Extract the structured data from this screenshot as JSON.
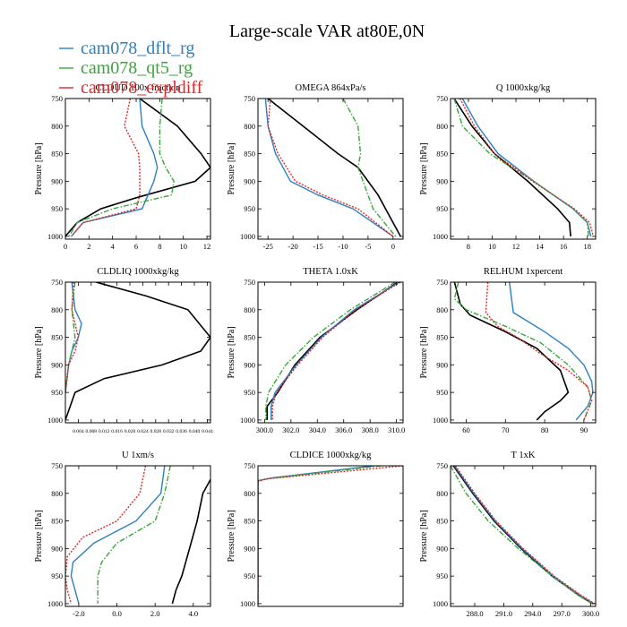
{
  "title": "Large-scale VAR at80E,0N",
  "legend": [
    {
      "name": "cam078_dflt_rg",
      "color": "#2e7fc0",
      "dash": "solid"
    },
    {
      "name": "cam078_qt5_rg",
      "color": "#3aa53a",
      "dash": "dashdot"
    },
    {
      "name": "cam078_expldiff",
      "color": "#e0282a",
      "dash": "dotted"
    }
  ],
  "obs_color": "#000000",
  "ylabel": "Pressure [hPa]",
  "ylim": [
    1005,
    750
  ],
  "yticks": [
    750,
    800,
    850,
    900,
    950,
    1000
  ],
  "chart_data": [
    {
      "type": "line",
      "title": "CLOUD 100x fraction",
      "xlim": [
        0,
        12.3
      ],
      "xticks": [
        0,
        2,
        4,
        6,
        8,
        10,
        12
      ],
      "xticklabels": [
        "0",
        "2",
        "4",
        "6",
        "8",
        "10",
        "12"
      ],
      "series": [
        {
          "name": "obs",
          "x": [
            6.3,
            9.5,
            11.5,
            12.3,
            11,
            6,
            3,
            1,
            0
          ],
          "y": [
            750,
            800,
            850,
            875,
            900,
            930,
            950,
            975,
            1000
          ]
        },
        {
          "name": "cam078_dflt_rg",
          "x": [
            6.3,
            6.5,
            7.5,
            7.8,
            7.5,
            7,
            6.5,
            1.5,
            0.5
          ],
          "y": [
            750,
            800,
            850,
            875,
            900,
            925,
            950,
            975,
            1000
          ]
        },
        {
          "name": "cam078_qt5_rg",
          "x": [
            8.2,
            8,
            8,
            8.5,
            9.2,
            9,
            4,
            1,
            0.3
          ],
          "y": [
            750,
            800,
            850,
            875,
            900,
            925,
            950,
            975,
            1000
          ]
        },
        {
          "name": "cam078_expldiff",
          "x": [
            5.5,
            5,
            6.2,
            6.3,
            6.3,
            6.3,
            6,
            1.5,
            0.5
          ],
          "y": [
            750,
            800,
            850,
            875,
            900,
            925,
            950,
            975,
            1000
          ]
        }
      ]
    },
    {
      "type": "line",
      "title": "OMEGA  864xPa/s",
      "xlim": [
        -27,
        2
      ],
      "xticks": [
        -25,
        -20,
        -15,
        -10,
        -5,
        0
      ],
      "xticklabels": [
        "-25",
        "-20",
        "-15",
        "-10",
        "-5",
        "0"
      ],
      "series": [
        {
          "name": "obs",
          "x": [
            -25,
            -18,
            -11,
            -7,
            -3,
            0,
            1.5
          ],
          "y": [
            750,
            800,
            850,
            875,
            925,
            975,
            1000
          ]
        },
        {
          "name": "cam078_dflt_rg",
          "x": [
            -25.5,
            -25,
            -23.5,
            -20.5,
            -15,
            -8,
            0
          ],
          "y": [
            750,
            800,
            850,
            900,
            925,
            950,
            1000
          ]
        },
        {
          "name": "cam078_qt5_rg",
          "x": [
            -10,
            -7,
            -6.5,
            -7,
            -6,
            -4,
            0.5
          ],
          "y": [
            750,
            800,
            850,
            875,
            900,
            950,
            1000
          ]
        },
        {
          "name": "cam078_expldiff",
          "x": [
            -24.5,
            -25,
            -23,
            -19.5,
            -14,
            -7,
            0
          ],
          "y": [
            750,
            800,
            850,
            900,
            925,
            950,
            1000
          ]
        }
      ]
    },
    {
      "type": "line",
      "title": "Q  1000xkg/kg",
      "xlim": [
        6.5,
        18.7
      ],
      "xticks": [
        8,
        10,
        12,
        14,
        16,
        18
      ],
      "xticklabels": [
        "8",
        "10",
        "12",
        "14",
        "16",
        "18"
      ],
      "series": [
        {
          "name": "obs",
          "x": [
            6.8,
            8.3,
            10.2,
            13,
            15.5,
            16.5,
            16.6
          ],
          "y": [
            750,
            800,
            850,
            900,
            950,
            975,
            1000
          ]
        },
        {
          "name": "cam078_dflt_rg",
          "x": [
            7.5,
            8.8,
            10.5,
            13.5,
            16.8,
            18,
            18.3
          ],
          "y": [
            750,
            800,
            850,
            900,
            950,
            975,
            1000
          ]
        },
        {
          "name": "cam078_qt5_rg",
          "x": [
            6.8,
            7.5,
            9.8,
            13.5,
            16.8,
            18,
            18.1
          ],
          "y": [
            750,
            800,
            850,
            900,
            950,
            975,
            1000
          ]
        },
        {
          "name": "cam078_expldiff",
          "x": [
            7.3,
            8.5,
            10.2,
            13.4,
            16.9,
            18.2,
            18.5
          ],
          "y": [
            750,
            800,
            850,
            900,
            950,
            975,
            1000
          ]
        }
      ]
    },
    {
      "type": "line",
      "title": "CLDLIQ  1000xkg/kg",
      "xlim": [
        0,
        0.045
      ],
      "xticks": [
        0.004,
        0.008,
        0.012,
        0.016,
        0.02,
        0.024,
        0.028,
        0.032,
        0.036,
        0.04,
        0.044
      ],
      "xticklabels": [
        "0.004",
        "0.008",
        "0.012",
        "0.016",
        "0.020",
        "0.024",
        "0.028",
        "0.032",
        "0.036",
        "0.040",
        "0.044"
      ],
      "series": [
        {
          "name": "obs",
          "x": [
            0.0095,
            0.025,
            0.038,
            0.045,
            0.042,
            0.03,
            0.012,
            0.003,
            0
          ],
          "y": [
            750,
            775,
            800,
            850,
            875,
            900,
            925,
            950,
            1000
          ]
        },
        {
          "name": "cam078_dflt_rg",
          "x": [
            0.002,
            0.003,
            0.005,
            0.004,
            0.002,
            0.001,
            0
          ],
          "y": [
            750,
            800,
            825,
            850,
            875,
            900,
            950
          ]
        },
        {
          "name": "cam078_qt5_rg",
          "x": [
            0.003,
            0.002,
            0.003,
            0.002,
            0.001,
            0
          ],
          "y": [
            750,
            800,
            850,
            875,
            900,
            950
          ]
        },
        {
          "name": "cam078_expldiff",
          "x": [
            0.0025,
            0.002,
            0.003,
            0.004,
            0.003,
            0.001,
            0
          ],
          "y": [
            750,
            800,
            825,
            850,
            875,
            900,
            950
          ]
        }
      ]
    },
    {
      "type": "line",
      "title": "THETA  1.0xK",
      "xlim": [
        299.5,
        310.5
      ],
      "xticks": [
        300,
        302,
        304,
        306,
        308,
        310
      ],
      "xticklabels": [
        "300.0",
        "302.0",
        "304.0",
        "306.0",
        "308.0",
        "310.0"
      ],
      "series": [
        {
          "name": "obs",
          "x": [
            310.1,
            307,
            304.2,
            302.3,
            301,
            300.2,
            300.2
          ],
          "y": [
            750,
            800,
            850,
            900,
            950,
            975,
            1000
          ]
        },
        {
          "name": "cam078_dflt_rg",
          "x": [
            310.2,
            306.8,
            304.3,
            302.4,
            300.8,
            300.5,
            300.5
          ],
          "y": [
            750,
            800,
            850,
            900,
            950,
            975,
            1000
          ]
        },
        {
          "name": "cam078_qt5_rg",
          "x": [
            309.9,
            306.5,
            303.7,
            301.6,
            300.3,
            300.1,
            300.1
          ],
          "y": [
            750,
            800,
            850,
            900,
            950,
            975,
            1000
          ]
        },
        {
          "name": "cam078_expldiff",
          "x": [
            310.3,
            306.9,
            304.4,
            302.5,
            300.9,
            300.6,
            300.6
          ],
          "y": [
            750,
            800,
            850,
            900,
            950,
            975,
            1000
          ]
        }
      ]
    },
    {
      "type": "line",
      "title": "RELHUM  1xpercent",
      "xlim": [
        56,
        93
      ],
      "xticks": [
        60,
        70,
        80,
        90
      ],
      "xticklabels": [
        "60",
        "70",
        "80",
        "90"
      ],
      "series": [
        {
          "name": "obs",
          "x": [
            57,
            58.5,
            61,
            70,
            78,
            84,
            86,
            84,
            80,
            78
          ],
          "y": [
            750,
            790,
            810,
            840,
            870,
            910,
            950,
            965,
            985,
            1000
          ]
        },
        {
          "name": "cam078_dflt_rg",
          "x": [
            71,
            72,
            80,
            86,
            90,
            92,
            92.3,
            91,
            88
          ],
          "y": [
            750,
            805,
            840,
            870,
            900,
            930,
            950,
            975,
            1000
          ]
        },
        {
          "name": "cam078_qt5_rg",
          "x": [
            58,
            57,
            60,
            70,
            79,
            86,
            91,
            92,
            90
          ],
          "y": [
            750,
            780,
            800,
            830,
            860,
            900,
            940,
            965,
            1000
          ]
        },
        {
          "name": "cam078_expldiff",
          "x": [
            65.5,
            65,
            68,
            73,
            79,
            86,
            91,
            92,
            90
          ],
          "y": [
            750,
            805,
            830,
            850,
            880,
            910,
            940,
            965,
            1000
          ]
        }
      ]
    },
    {
      "type": "line",
      "title": "U  1xm/s",
      "xlim": [
        -2.7,
        4.9
      ],
      "xticks": [
        -2,
        0,
        2,
        4
      ],
      "xticklabels": [
        "-2.0",
        "0.0",
        "2.0",
        "4.0"
      ],
      "series": [
        {
          "name": "obs",
          "x": [
            4.9,
            4.5,
            4.2,
            3.8,
            3.4,
            3.1,
            2.9
          ],
          "y": [
            775,
            800,
            850,
            900,
            950,
            975,
            1000
          ]
        },
        {
          "name": "cam078_dflt_rg",
          "x": [
            2.5,
            2.3,
            1.0,
            -1.2,
            -2.3,
            -2.4,
            -2.2,
            -2.0
          ],
          "y": [
            750,
            800,
            850,
            890,
            925,
            950,
            975,
            1000
          ]
        },
        {
          "name": "cam078_qt5_rg",
          "x": [
            2.8,
            2.5,
            2.0,
            0.0,
            -0.8,
            -1.0,
            -1.0,
            -1.0
          ],
          "y": [
            750,
            800,
            850,
            890,
            925,
            950,
            975,
            1000
          ]
        },
        {
          "name": "cam078_expldiff",
          "x": [
            1.5,
            1.2,
            0.0,
            -1.8,
            -2.6,
            -2.7,
            -2.6,
            -2.4
          ],
          "y": [
            750,
            800,
            850,
            880,
            915,
            950,
            975,
            1000
          ]
        }
      ]
    },
    {
      "type": "line",
      "title": "CLDICE  1000xkg/kg",
      "xlim": [
        0,
        0.0002
      ],
      "xticks": [],
      "xticklabels": [],
      "series": [
        {
          "name": "cam078_dflt_rg",
          "x": [
            0.00016,
            2e-05,
            0,
            0
          ],
          "y": [
            750,
            772,
            777,
            1000
          ]
        },
        {
          "name": "cam078_qt5_rg",
          "x": [
            0.00017,
            1.5e-05,
            0,
            0
          ],
          "y": [
            750,
            773,
            778,
            1000
          ]
        },
        {
          "name": "cam078_expldiff",
          "x": [
            0.0002,
            1e-05,
            0,
            0
          ],
          "y": [
            750,
            774,
            779,
            1000
          ]
        }
      ]
    },
    {
      "type": "line",
      "title": "T  1xK",
      "xlim": [
        285.5,
        300.5
      ],
      "xticks": [
        288,
        291,
        294,
        297,
        300
      ],
      "xticklabels": [
        "288.0",
        "291.0",
        "294.0",
        "297.0",
        "300.0"
      ],
      "series": [
        {
          "name": "obs",
          "x": [
            285.8,
            287.8,
            290,
            292.8,
            296,
            298.8,
            300.2
          ],
          "y": [
            750,
            800,
            850,
            900,
            950,
            985,
            1000
          ]
        },
        {
          "name": "cam078_dflt_rg",
          "x": [
            285.9,
            287.9,
            290.1,
            292.9,
            296.1,
            298.9,
            300.3
          ],
          "y": [
            750,
            800,
            850,
            900,
            950,
            985,
            1000
          ]
        },
        {
          "name": "cam078_qt5_rg",
          "x": [
            285.5,
            287.1,
            289.4,
            292.5,
            296,
            298.7,
            300.1
          ],
          "y": [
            750,
            800,
            850,
            900,
            950,
            985,
            1000
          ]
        },
        {
          "name": "cam078_expldiff",
          "x": [
            286,
            288,
            290.2,
            293,
            296.2,
            299,
            300.4
          ],
          "y": [
            750,
            800,
            850,
            900,
            950,
            985,
            1000
          ]
        }
      ]
    }
  ]
}
